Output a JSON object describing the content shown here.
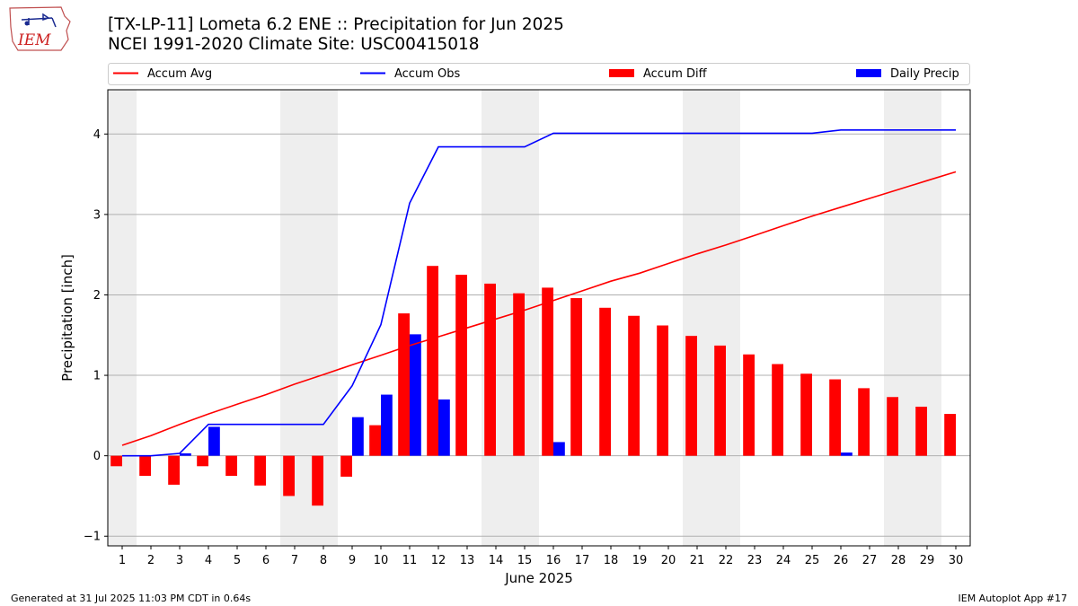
{
  "header": {
    "title_line1": "[TX-LP-11] Lometa 6.2 ENE :: Precipitation for Jun 2025",
    "title_line2": "NCEI 1991-2020 Climate Site: USC00415018"
  },
  "logo": {
    "text": "IEM"
  },
  "footer": {
    "generated": "Generated at 31 Jul 2025 11:03 PM CDT in 0.64s",
    "app": "IEM Autoplot App #17"
  },
  "colors": {
    "avg": "#ff0000",
    "obs": "#0000ff",
    "diff": "#ff0000",
    "daily": "#0000ff",
    "weekend": "#eeeeee",
    "grid": "#b0b0b0"
  },
  "chart_data": {
    "type": "bar",
    "xlabel": "June 2025",
    "ylabel": "Precipitation [inch]",
    "ylim": [
      -1.12,
      4.55
    ],
    "yticks": [
      -1,
      0,
      1,
      2,
      3,
      4
    ],
    "grid": "y",
    "legend_placement": "top, above plot",
    "days": [
      1,
      2,
      3,
      4,
      5,
      6,
      7,
      8,
      9,
      10,
      11,
      12,
      13,
      14,
      15,
      16,
      17,
      18,
      19,
      20,
      21,
      22,
      23,
      24,
      25,
      26,
      27,
      28,
      29,
      30
    ],
    "weekend_days": [
      1,
      7,
      8,
      14,
      15,
      21,
      22,
      28,
      29
    ],
    "series": [
      {
        "name": "Accum Avg",
        "kind": "line",
        "values": [
          0.13,
          0.25,
          0.39,
          0.52,
          0.64,
          0.76,
          0.89,
          1.01,
          1.13,
          1.25,
          1.37,
          1.48,
          1.59,
          1.7,
          1.81,
          1.93,
          2.05,
          2.17,
          2.27,
          2.39,
          2.51,
          2.62,
          2.74,
          2.86,
          2.98,
          3.09,
          3.2,
          3.31,
          3.42,
          3.53
        ]
      },
      {
        "name": "Accum Obs",
        "kind": "line",
        "values": [
          0.0,
          0.0,
          0.03,
          0.39,
          0.39,
          0.39,
          0.39,
          0.39,
          0.87,
          1.63,
          3.14,
          3.84,
          3.84,
          3.84,
          3.84,
          4.01,
          4.01,
          4.01,
          4.01,
          4.01,
          4.01,
          4.01,
          4.01,
          4.01,
          4.01,
          4.05,
          4.05,
          4.05,
          4.05,
          4.05
        ]
      },
      {
        "name": "Accum Diff",
        "kind": "bar",
        "values": [
          -0.13,
          -0.25,
          -0.36,
          -0.13,
          -0.25,
          -0.37,
          -0.5,
          -0.62,
          -0.26,
          0.38,
          1.77,
          2.36,
          2.25,
          2.14,
          2.02,
          2.09,
          1.96,
          1.84,
          1.74,
          1.62,
          1.49,
          1.37,
          1.26,
          1.14,
          1.02,
          0.95,
          0.84,
          0.73,
          0.61,
          0.52
        ]
      },
      {
        "name": "Daily Precip",
        "kind": "bar",
        "values": [
          0.0,
          0.0,
          0.03,
          0.36,
          0.0,
          0.0,
          0.0,
          0.0,
          0.48,
          0.76,
          1.51,
          0.7,
          0.0,
          0.0,
          0.0,
          0.17,
          0.0,
          0.0,
          0.0,
          0.0,
          0.0,
          0.0,
          0.0,
          0.0,
          0.0,
          0.04,
          0.0,
          0.0,
          0.0,
          0.0
        ]
      }
    ]
  }
}
